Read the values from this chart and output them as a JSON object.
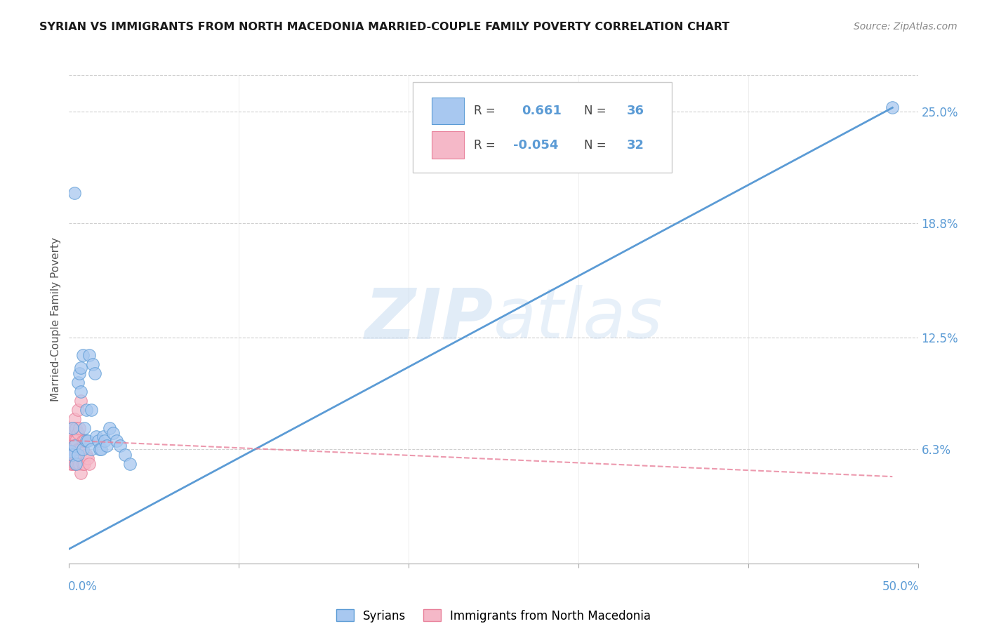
{
  "title": "SYRIAN VS IMMIGRANTS FROM NORTH MACEDONIA MARRIED-COUPLE FAMILY POVERTY CORRELATION CHART",
  "source": "Source: ZipAtlas.com",
  "ylabel": "Married-Couple Family Poverty",
  "ytick_labels": [
    "25.0%",
    "18.8%",
    "12.5%",
    "6.3%"
  ],
  "ytick_values": [
    0.25,
    0.188,
    0.125,
    0.063
  ],
  "xlim": [
    0.0,
    0.5
  ],
  "ylim": [
    0.0,
    0.27
  ],
  "blue_R": "0.661",
  "blue_N": "36",
  "pink_R": "-0.054",
  "pink_N": "32",
  "blue_color": "#a8c8f0",
  "pink_color": "#f5b8c8",
  "blue_line_color": "#5b9bd5",
  "pink_line_color": "#f5b8c8",
  "pink_edge_color": "#e8809a",
  "blue_edge_color": "#5b9bd5",
  "watermark_color": "#c8dff5",
  "legend_label_blue": "Syrians",
  "legend_label_pink": "Immigrants from North Macedonia",
  "blue_scatter_x": [
    0.001,
    0.002,
    0.002,
    0.003,
    0.003,
    0.004,
    0.005,
    0.005,
    0.006,
    0.007,
    0.007,
    0.008,
    0.008,
    0.009,
    0.01,
    0.01,
    0.011,
    0.012,
    0.013,
    0.013,
    0.014,
    0.015,
    0.016,
    0.017,
    0.018,
    0.019,
    0.02,
    0.021,
    0.022,
    0.024,
    0.026,
    0.028,
    0.03,
    0.033,
    0.036,
    0.485
  ],
  "blue_scatter_y": [
    0.062,
    0.075,
    0.06,
    0.205,
    0.065,
    0.055,
    0.1,
    0.06,
    0.105,
    0.095,
    0.108,
    0.063,
    0.115,
    0.075,
    0.068,
    0.085,
    0.068,
    0.115,
    0.063,
    0.085,
    0.11,
    0.105,
    0.07,
    0.068,
    0.063,
    0.063,
    0.07,
    0.068,
    0.065,
    0.075,
    0.072,
    0.068,
    0.065,
    0.06,
    0.055,
    0.252
  ],
  "pink_scatter_x": [
    0.001,
    0.001,
    0.001,
    0.002,
    0.002,
    0.002,
    0.002,
    0.003,
    0.003,
    0.003,
    0.003,
    0.004,
    0.004,
    0.004,
    0.004,
    0.005,
    0.005,
    0.005,
    0.005,
    0.006,
    0.006,
    0.006,
    0.007,
    0.007,
    0.007,
    0.008,
    0.008,
    0.009,
    0.009,
    0.01,
    0.011,
    0.012
  ],
  "pink_scatter_y": [
    0.055,
    0.063,
    0.072,
    0.055,
    0.063,
    0.068,
    0.075,
    0.055,
    0.063,
    0.068,
    0.08,
    0.055,
    0.06,
    0.068,
    0.075,
    0.055,
    0.063,
    0.072,
    0.085,
    0.055,
    0.063,
    0.075,
    0.05,
    0.063,
    0.09,
    0.055,
    0.068,
    0.055,
    0.068,
    0.06,
    0.058,
    0.055
  ],
  "blue_line_x": [
    0.0,
    0.485
  ],
  "blue_line_y": [
    0.008,
    0.252
  ],
  "pink_line_x": [
    0.0,
    0.485
  ],
  "pink_line_y": [
    0.068,
    0.048
  ],
  "grid_color": "#d0d0d0",
  "bg_color": "#ffffff",
  "right_tick_color": "#5b9bd5",
  "title_color": "#1a1a1a",
  "source_color": "#888888",
  "ylabel_color": "#555555"
}
